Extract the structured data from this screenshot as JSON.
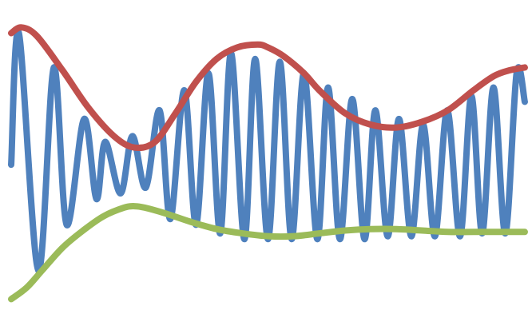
{
  "chart_data": {
    "type": "line",
    "xlabel": "",
    "ylabel": "",
    "grid": false,
    "legend": "none",
    "xlim": [
      0,
      100
    ],
    "ylim": [
      0,
      100
    ],
    "series": [
      {
        "color": "#4f81bd",
        "x": [
          0,
          1.5,
          5.3,
          8.3,
          10.8,
          14.2,
          16.6,
          18.3,
          21.3,
          23.6,
          26.2,
          28.9,
          31.0,
          33.7,
          36.0,
          38.4,
          40.7,
          42.8,
          45.4,
          47.5,
          50.0,
          52.3,
          54.6,
          57.0,
          59.6,
          61.7,
          64.0,
          66.4,
          68.8,
          70.9,
          73.3,
          75.5,
          77.9,
          80.2,
          82.5,
          84.9,
          87.4,
          89.6,
          91.7,
          93.9,
          96.2,
          98.4,
          100
        ],
        "y": [
          48,
          94,
          11,
          82,
          27,
          64,
          36,
          56,
          38,
          58,
          40,
          67,
          29,
          74,
          27,
          80,
          24,
          87,
          22,
          85,
          22,
          84,
          22,
          80,
          22,
          75,
          22,
          71,
          22,
          67,
          23,
          64,
          23,
          62,
          23,
          67,
          23,
          72,
          24,
          75,
          24,
          80,
          70
        ]
      },
      {
        "color": "#c0504d",
        "x": [
          0,
          2,
          5,
          10,
          15,
          20,
          24,
          28,
          32,
          36,
          40,
          44,
          48,
          50,
          53,
          57,
          60,
          65,
          70,
          75,
          80,
          85,
          90,
          94,
          97,
          100
        ],
        "y": [
          94,
          96,
          93,
          81,
          68,
          58,
          54,
          56,
          66,
          77,
          85,
          89,
          90,
          89,
          86,
          80,
          74,
          66,
          62,
          61,
          63,
          67,
          74,
          79,
          81,
          82
        ]
      },
      {
        "color": "#9bbb59",
        "x": [
          0,
          3,
          6,
          10,
          14,
          18,
          22,
          24,
          26,
          30,
          35,
          40,
          45,
          50,
          55,
          60,
          65,
          70,
          75,
          80,
          85,
          90,
          95,
          100
        ],
        "y": [
          1,
          5,
          11,
          19,
          25,
          30,
          33,
          33.5,
          33,
          31,
          28,
          25.5,
          24,
          23,
          23,
          24,
          25,
          25.5,
          25.5,
          25,
          24.5,
          24.5,
          24.5,
          24.5
        ]
      }
    ]
  }
}
